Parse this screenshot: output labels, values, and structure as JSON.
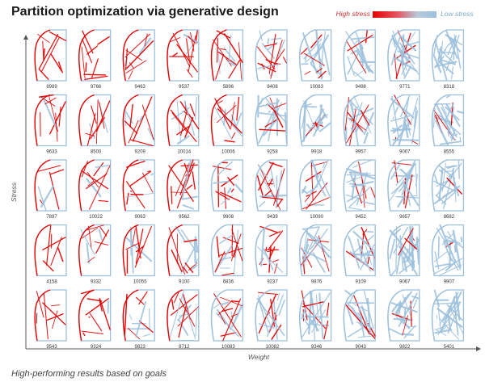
{
  "title": "Partition optimization via generative design",
  "legend": {
    "high_label": "High stress",
    "low_label": "Low stress",
    "colors": {
      "high": "#e60000",
      "low": "#9bbfdc"
    }
  },
  "axes": {
    "x_label": "Weight",
    "y_label": "Stress"
  },
  "caption": "High-performing results based on goals",
  "grid": {
    "rows": [
      [
        "8989",
        "9766",
        "9463",
        "9537",
        "5896",
        "8408",
        "10083",
        "9498",
        "9771",
        "8318"
      ],
      [
        "9633",
        "8500",
        "9209",
        "10014",
        "10006",
        "9258",
        "9918",
        "9957",
        "9007",
        "8555"
      ],
      [
        "7897",
        "10022",
        "9063",
        "9562",
        "9908",
        "9439",
        "10090",
        "9452",
        "9657",
        "8682"
      ],
      [
        "4158",
        "9332",
        "10055",
        "9100",
        "6836",
        "9237",
        "9876",
        "9109",
        "9067",
        "9907"
      ],
      [
        "9543",
        "9324",
        "9823",
        "8712",
        "10083",
        "10082",
        "9346",
        "9043",
        "9822",
        "5401"
      ]
    ]
  }
}
